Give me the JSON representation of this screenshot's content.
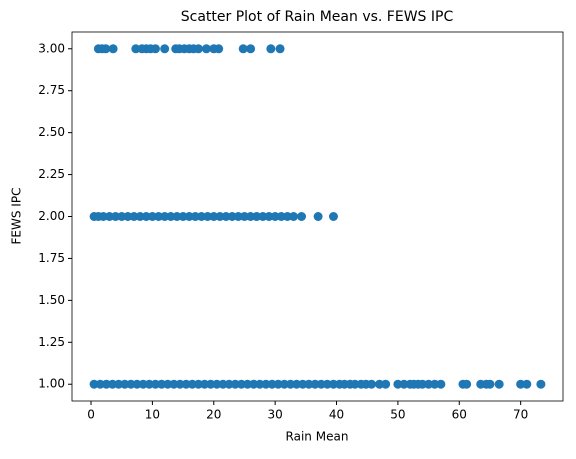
{
  "chart_data": {
    "type": "scatter",
    "title": "Scatter Plot of Rain Mean vs. FEWS IPC",
    "xlabel": "Rain Mean",
    "ylabel": "FEWS IPC",
    "color": "#1f77b4",
    "x": [
      0.5,
      1.5,
      2.5,
      3.5,
      4.5,
      5.5,
      6.5,
      7.5,
      8.5,
      9.5,
      10.5,
      11.5,
      12.5,
      13.5,
      14.5,
      15.5,
      16.5,
      17.5,
      18.5,
      19.5,
      20.5,
      21.5,
      22.5,
      23.5,
      24.5,
      25.5,
      26.5,
      27.5,
      28.5,
      29.5,
      30.5,
      31.5,
      32.5,
      33.5,
      34.5,
      35.5,
      36.5,
      37.5,
      38.5,
      39.5,
      40.5,
      41.3,
      42.2,
      43,
      44,
      44.8,
      45.7,
      47,
      48,
      50,
      51,
      52,
      52.6,
      53.3,
      54,
      55,
      56,
      57,
      60.6,
      61.2,
      63.5,
      64.4,
      65,
      66.5,
      70,
      71,
      73.3,
      0.5,
      1.2,
      2,
      3,
      4,
      5,
      6,
      7,
      8,
      9,
      10,
      11,
      12,
      13,
      14,
      15,
      16,
      17,
      18,
      19,
      20,
      21,
      22,
      23,
      24,
      25,
      26,
      27,
      28,
      29,
      30,
      31,
      32,
      33,
      34.3,
      37,
      39.5,
      1.2,
      1.8,
      2.4,
      3.6,
      7.3,
      8.3,
      9,
      9.7,
      10.5,
      12,
      13.8,
      14.4,
      15.2,
      16,
      16.7,
      17.5,
      18.8,
      20,
      20.8,
      24.8,
      26,
      29.3,
      30.8
    ],
    "y": [
      1,
      1,
      1,
      1,
      1,
      1,
      1,
      1,
      1,
      1,
      1,
      1,
      1,
      1,
      1,
      1,
      1,
      1,
      1,
      1,
      1,
      1,
      1,
      1,
      1,
      1,
      1,
      1,
      1,
      1,
      1,
      1,
      1,
      1,
      1,
      1,
      1,
      1,
      1,
      1,
      1,
      1,
      1,
      1,
      1,
      1,
      1,
      1,
      1,
      1,
      1,
      1,
      1,
      1,
      1,
      1,
      1,
      1,
      1,
      1,
      1,
      1,
      1,
      1,
      1,
      1,
      1,
      2,
      2,
      2,
      2,
      2,
      2,
      2,
      2,
      2,
      2,
      2,
      2,
      2,
      2,
      2,
      2,
      2,
      2,
      2,
      2,
      2,
      2,
      2,
      2,
      2,
      2,
      2,
      2,
      2,
      2,
      2,
      2,
      2,
      2,
      2,
      2,
      2,
      3,
      3,
      3,
      3,
      3,
      3,
      3,
      3,
      3,
      3,
      3,
      3,
      3,
      3,
      3,
      3,
      3,
      3,
      3,
      3,
      3,
      3,
      3
    ],
    "xlim": [
      -3.1,
      76.9
    ],
    "ylim": [
      0.9,
      3.1
    ],
    "xticks": [
      0,
      10,
      20,
      30,
      40,
      50,
      60,
      70
    ],
    "yticks": [
      {
        "value": 1,
        "label": "1.00"
      },
      {
        "value": 1.25,
        "label": "1.25"
      },
      {
        "value": 1.5,
        "label": "1.50"
      },
      {
        "value": 1.75,
        "label": "1.75"
      },
      {
        "value": 2,
        "label": "2.00"
      },
      {
        "value": 2.25,
        "label": "2.25"
      },
      {
        "value": 2.5,
        "label": "2.50"
      },
      {
        "value": 2.75,
        "label": "2.75"
      },
      {
        "value": 3,
        "label": "3.00"
      }
    ]
  }
}
